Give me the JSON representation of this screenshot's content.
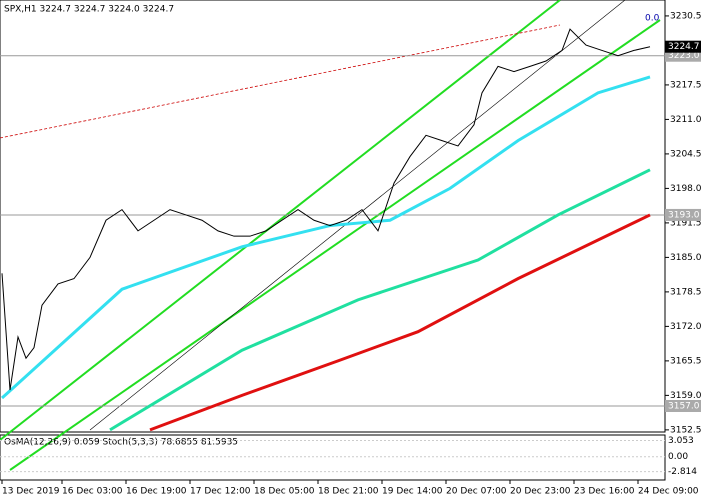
{
  "chart_data": {
    "type": "line",
    "title": "SPX,H1  3224.7 3224.7 3224.0 3224.7",
    "corner_label": "0.0",
    "x": [
      0,
      2,
      4,
      6,
      8,
      10,
      14,
      18,
      22,
      26,
      30,
      34,
      38,
      42,
      46,
      50,
      54,
      58,
      62,
      66,
      70,
      74,
      78,
      82,
      86,
      90,
      94,
      98,
      102,
      106,
      110,
      114,
      118,
      120,
      124,
      128,
      132,
      136,
      140,
      142,
      146,
      150,
      154,
      158,
      162
    ],
    "series": [
      {
        "name": "SPX",
        "color": "#000000",
        "values": [
          3182,
          3160,
          3170,
          3166,
          3168,
          3176,
          3180,
          3181,
          3185,
          3192,
          3194,
          3190,
          3192,
          3194,
          3193,
          3192,
          3190,
          3189,
          3189,
          3190,
          3192,
          3194,
          3192,
          3191,
          3192,
          3194,
          3190,
          3199,
          3204,
          3208,
          3207,
          3206,
          3210,
          3216,
          3221,
          3220,
          3221,
          3222,
          3224,
          3228,
          3225,
          3224,
          3223,
          3224,
          3224.7
        ]
      }
    ],
    "averages": [
      {
        "color": "#33e0f0",
        "x": [
          0,
          30,
          60,
          82,
          97,
          112,
          129,
          149,
          162
        ],
        "values": [
          3158.5,
          3179,
          3187,
          3191,
          3192,
          3198,
          3207,
          3216,
          3219
        ]
      },
      {
        "color": "#20e0a0",
        "x": [
          27,
          60,
          89,
          119,
          139,
          162
        ],
        "values": [
          3152.5,
          3167.5,
          3177,
          3184.5,
          3193,
          3201.5
        ]
      },
      {
        "color": "#e01010",
        "x": [
          37,
          60,
          84,
          104,
          129,
          162
        ],
        "values": [
          3152.5,
          3159,
          3165.5,
          3171,
          3181,
          3193
        ]
      }
    ],
    "levels": [
      {
        "value": 3223,
        "label": "3223.0"
      },
      {
        "value": 3193,
        "label": "3193.0"
      },
      {
        "value": 3157,
        "label": "3157.0"
      }
    ],
    "last_price": 3224.7,
    "xlim": [
      0,
      174.75
    ],
    "xticks": [
      {
        "value": 0,
        "label": "13 Dec 2019"
      },
      {
        "value": 15,
        "label": "16 Dec 03:00"
      },
      {
        "value": 31,
        "label": "16 Dec 19:00"
      },
      {
        "value": 47,
        "label": "17 Dec 12:00"
      },
      {
        "value": 63,
        "label": "18 Dec 05:00"
      },
      {
        "value": 79,
        "label": "18 Dec 21:00"
      },
      {
        "value": 95,
        "label": "19 Dec 14:00"
      },
      {
        "value": 111,
        "label": "20 Dec 07:00"
      },
      {
        "value": 127,
        "label": "20 Dec 23:00"
      },
      {
        "value": 143,
        "label": "23 Dec 16:00"
      },
      {
        "value": 159,
        "label": "24 Dec 09:00"
      }
    ],
    "ylim": [
      3152.1,
      3233.5
    ],
    "yticks": [
      3230.5,
      3217.5,
      {
        "value": 3211,
        "label": "3211.0"
      },
      3204.5,
      {
        "value": 3198,
        "label": "3198.0"
      },
      3191.5,
      {
        "value": 3185,
        "label": "3185.0"
      },
      3178.5,
      {
        "value": 3172,
        "label": "3172.0"
      },
      3165.5,
      {
        "value": 3159,
        "label": "3159.0"
      },
      3152.5
    ],
    "indicator": {
      "title": "OsMA(12,26,9) 0.059  Stoch(5,3,3) 78.6855 81.5935",
      "ylim": [
        -4.2,
        3.9
      ],
      "yticks": [
        3.053,
        {
          "value": 0,
          "label": "0.00"
        },
        -2.814
      ]
    }
  }
}
